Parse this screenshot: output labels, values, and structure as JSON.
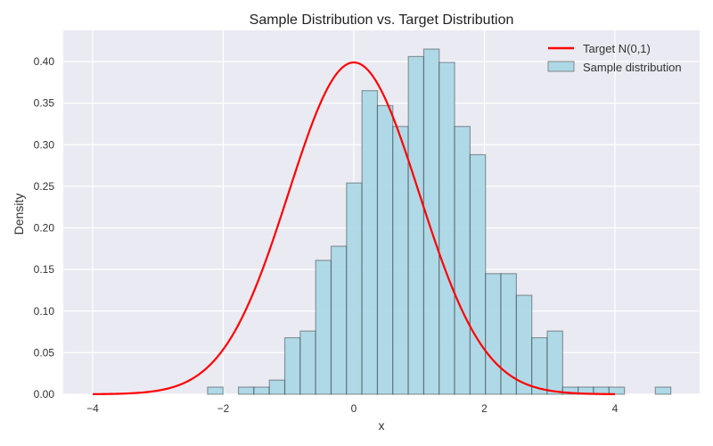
{
  "chart_data": {
    "type": "bar",
    "title": "Sample Distribution vs. Target Distribution",
    "xlabel": "x",
    "ylabel": "Density",
    "xlim": [
      -4.45,
      5.3
    ],
    "ylim": [
      0,
      0.435
    ],
    "xticks": [
      -4,
      -2,
      0,
      2,
      4
    ],
    "xtick_labels": [
      "−4",
      "−2",
      "0",
      "2",
      "4"
    ],
    "yticks": [
      0.0,
      0.05,
      0.1,
      0.15,
      0.2,
      0.25,
      0.3,
      0.35,
      0.4
    ],
    "ytick_labels": [
      "0.00",
      "0.05",
      "0.10",
      "0.15",
      "0.20",
      "0.25",
      "0.30",
      "0.35",
      "0.40"
    ],
    "grid": true,
    "legend_position": "upper right",
    "histogram": {
      "name": "Sample distribution",
      "color": "#add8e6",
      "edge_color": "#000000",
      "bin_start": -2.24,
      "bin_width": 0.2365,
      "values": [
        0.0086,
        0,
        0.0086,
        0.0086,
        0.017,
        0.068,
        0.076,
        0.161,
        0.178,
        0.254,
        0.365,
        0.347,
        0.322,
        0.406,
        0.415,
        0.399,
        0.322,
        0.288,
        0.145,
        0.145,
        0.119,
        0.068,
        0.076,
        0.0086,
        0.0086,
        0.0086,
        0.0086,
        0,
        0,
        0.0086
      ]
    },
    "series": [
      {
        "name": "Target N(0,1)",
        "type": "line",
        "color": "#ff0000",
        "function": "normal_pdf",
        "mean": 0,
        "std": 1,
        "x_range": [
          -4,
          4
        ]
      }
    ]
  },
  "legend": {
    "items": [
      {
        "label": "Target N(0,1)",
        "kind": "line",
        "color": "#ff0000"
      },
      {
        "label": "Sample distribution",
        "kind": "patch",
        "color": "#add8e6"
      }
    ]
  },
  "style": {
    "plot_bg": "#eaeaf2",
    "grid_color": "#ffffff"
  }
}
